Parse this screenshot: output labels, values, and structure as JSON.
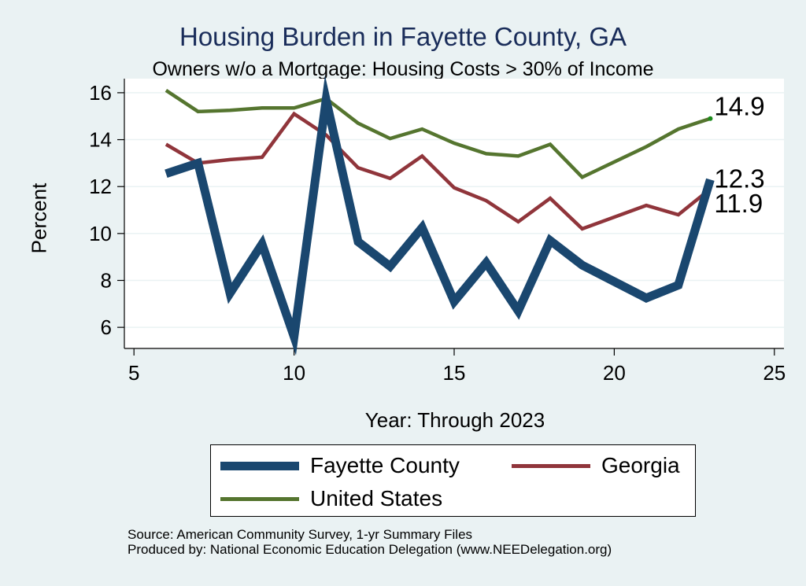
{
  "chart_data": {
    "type": "line",
    "title": "Housing Burden in Fayette County, GA",
    "subtitle": "Owners w/o a Mortgage: Housing Costs > 30% of Income",
    "xlabel": "Year: Through 2023",
    "ylabel": "Percent",
    "xlim": [
      4.7,
      25.3
    ],
    "ylim": [
      5.1,
      16.6
    ],
    "x_ticks": [
      "5",
      "10",
      "15",
      "20",
      "25"
    ],
    "y_ticks": [
      "6",
      "8",
      "10",
      "12",
      "14",
      "16"
    ],
    "x": [
      6,
      7,
      8,
      9,
      10,
      11,
      12,
      13,
      14,
      15,
      16,
      17,
      18,
      19,
      21,
      22,
      23
    ],
    "series": [
      {
        "name": "Fayette County",
        "color": "#1a476f",
        "values": [
          12.55,
          13.0,
          7.45,
          9.55,
          5.6,
          15.7,
          9.65,
          8.6,
          10.25,
          7.1,
          8.75,
          6.7,
          9.7,
          8.65,
          7.25,
          7.8,
          12.3
        ],
        "end_label": "12.3"
      },
      {
        "name": "Georgia",
        "color": "#90353b",
        "values": [
          13.8,
          13.0,
          13.15,
          13.25,
          15.1,
          14.2,
          12.8,
          12.35,
          13.3,
          11.95,
          11.4,
          10.5,
          11.5,
          10.2,
          11.2,
          10.8,
          11.9
        ],
        "end_label": "11.9"
      },
      {
        "name": "United States",
        "color": "#55752f",
        "values": [
          16.1,
          15.2,
          15.25,
          15.35,
          15.35,
          15.75,
          14.7,
          14.05,
          14.45,
          13.85,
          13.4,
          13.3,
          13.8,
          12.4,
          13.7,
          14.45,
          14.9
        ],
        "end_label": "14.9"
      }
    ]
  },
  "legend": {
    "fayette": "Fayette County",
    "georgia": "Georgia",
    "us": "United States"
  },
  "source": {
    "line1": "Source: American Community Survey, 1-yr Summary Files",
    "line2": "Produced by: National Economic Education Delegation (www.NEEDelegation.org)"
  }
}
